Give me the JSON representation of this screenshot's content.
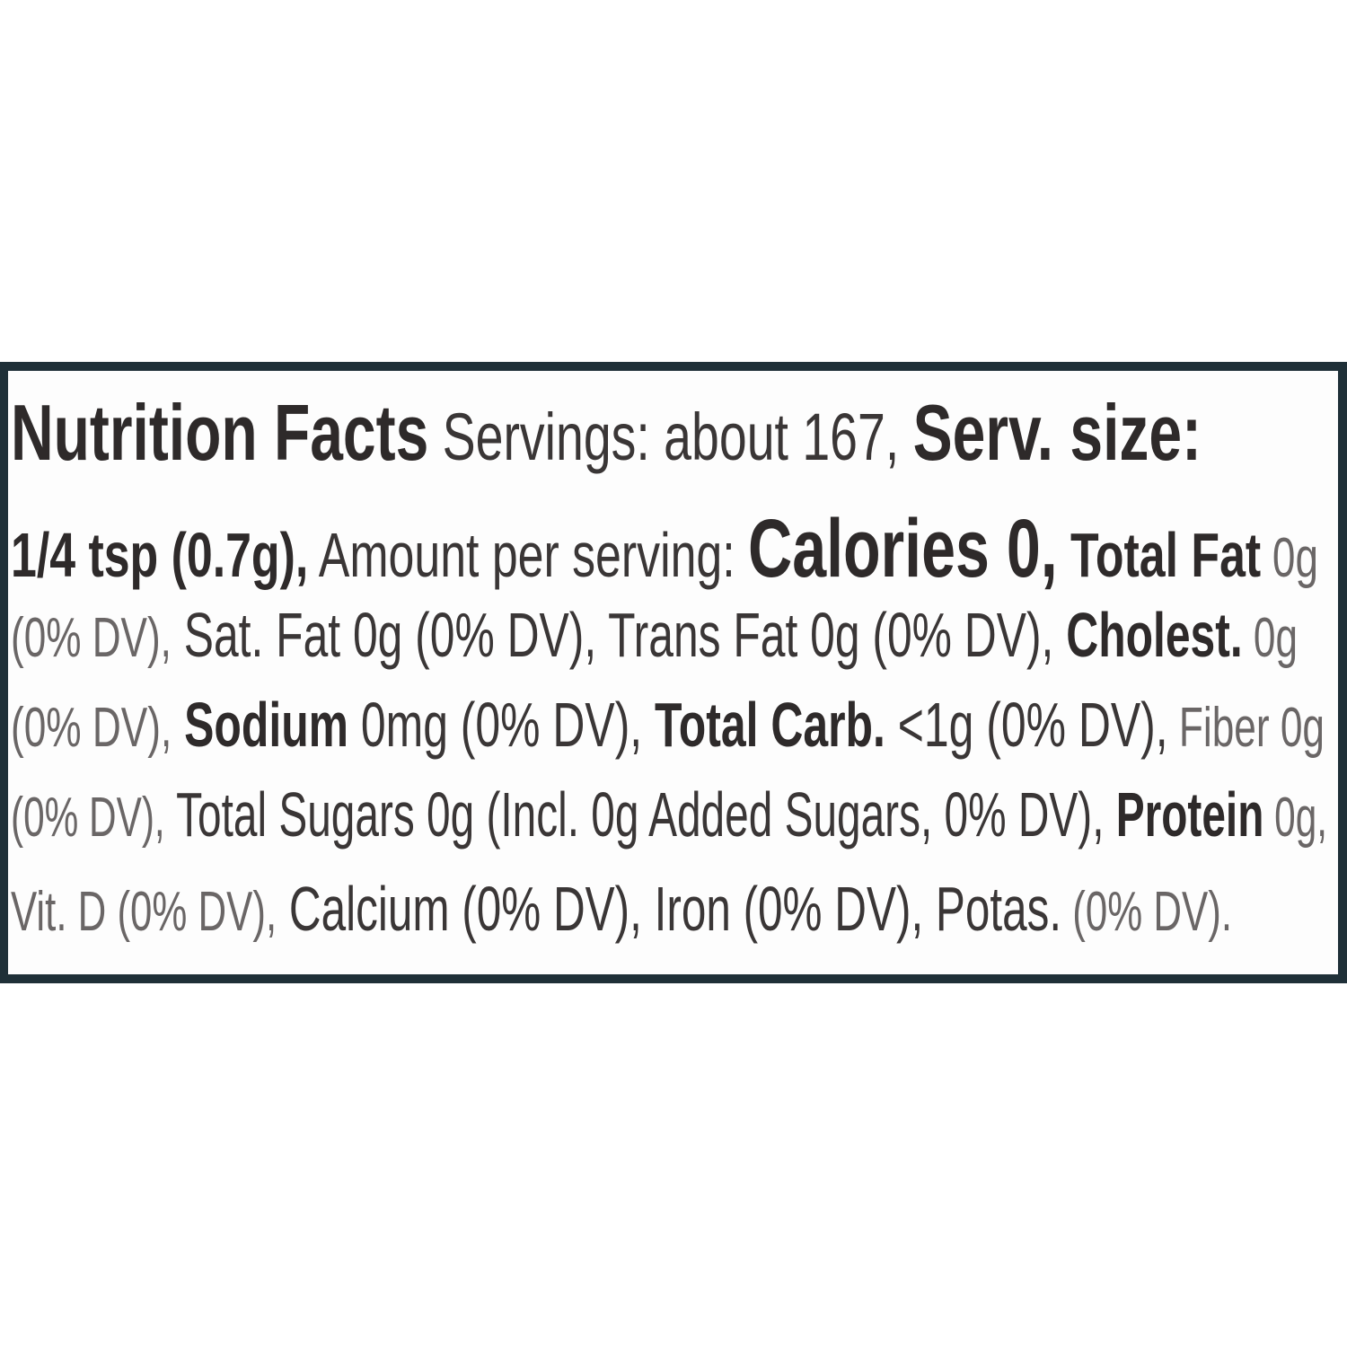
{
  "label": {
    "colors": {
      "border": "#1f3038",
      "text": "#2e2a2a",
      "light_text": "#6a6666"
    },
    "lines": [
      {
        "segments": [
          {
            "text": "Nutrition Facts",
            "style": "b"
          },
          {
            "text": " Servings: about 167, ",
            "style": "r"
          },
          {
            "text": "Serv. size:",
            "style": "b"
          }
        ]
      },
      {
        "segments": [
          {
            "text": "1/4 tsp (0.7g),",
            "style": "b"
          },
          {
            "text": " Amount per serving: ",
            "style": "r"
          },
          {
            "text": "Calories 0,",
            "style": "big"
          },
          {
            "text": " Total Fat",
            "style": "b"
          },
          {
            "text": " 0g",
            "style": "l"
          }
        ]
      },
      {
        "segments": [
          {
            "text": "(0% DV),",
            "style": "l"
          },
          {
            "text": " Sat. Fat 0g (0% DV), Trans Fat 0g (0% DV), ",
            "style": "r"
          },
          {
            "text": "Cholest.",
            "style": "b"
          },
          {
            "text": " 0g",
            "style": "l"
          }
        ]
      },
      {
        "segments": [
          {
            "text": "(0% DV),",
            "style": "l"
          },
          {
            "text": " Sodium",
            "style": "b"
          },
          {
            "text": " 0mg (0% DV), ",
            "style": "r"
          },
          {
            "text": "Total Carb.",
            "style": "b"
          },
          {
            "text": " <1g (0% DV),",
            "style": "r"
          },
          {
            "text": " Fiber 0g",
            "style": "l"
          }
        ]
      },
      {
        "segments": [
          {
            "text": "(0% DV),",
            "style": "l"
          },
          {
            "text": " Total Sugars 0g (Incl. 0g Added Sugars, 0% DV), ",
            "style": "r"
          },
          {
            "text": "Protein",
            "style": "b"
          },
          {
            "text": " 0g,",
            "style": "l"
          }
        ]
      },
      {
        "segments": [
          {
            "text": "Vit. D (0% DV),",
            "style": "l"
          },
          {
            "text": " Calcium (0% DV), Iron (0% DV), Potas.",
            "style": "r"
          },
          {
            "text": " (0% DV).",
            "style": "l"
          }
        ]
      }
    ]
  }
}
